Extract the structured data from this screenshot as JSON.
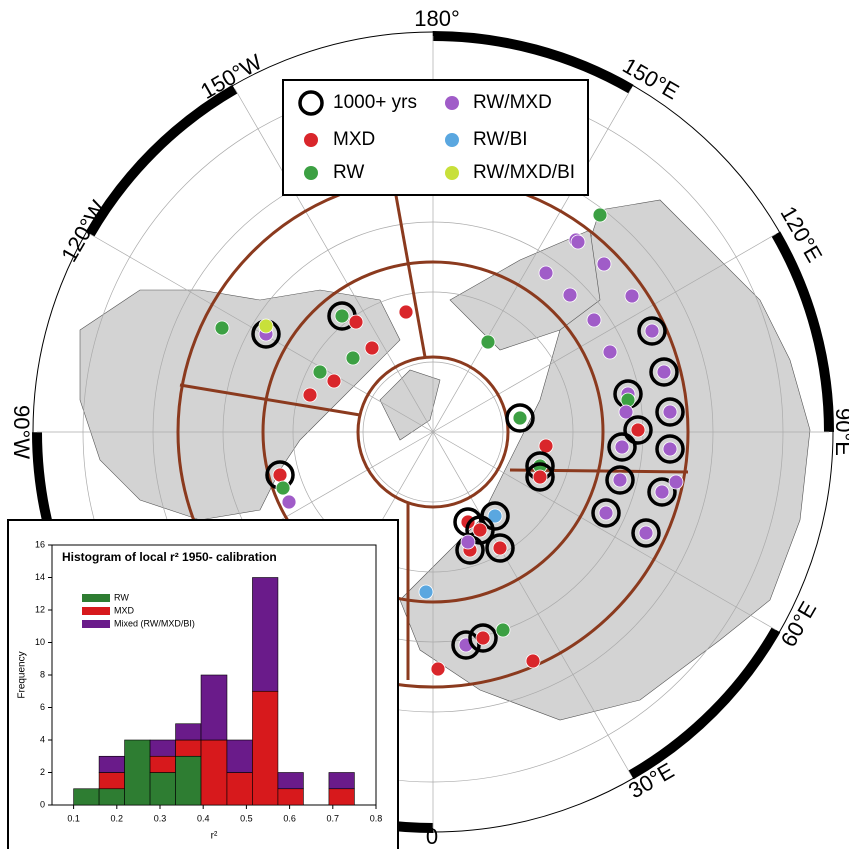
{
  "map": {
    "longitude_labels": [
      "180°",
      "150°W",
      "120°W",
      "90°W",
      "150°E",
      "120°E",
      "90°E",
      "60°E",
      "30°E",
      "0"
    ],
    "legend": [
      "1000+ yrs",
      "MXD",
      "RW",
      "RW/MXD",
      "RW/BI",
      "RW/MXD/BI"
    ]
  },
  "chart_data": {
    "type": "histogram",
    "title": "Histogram of local r² 1950- calibration",
    "x_label": "r²",
    "y_label": "Frequency",
    "bins": [
      0.1,
      0.159,
      0.218,
      0.277,
      0.336,
      0.395,
      0.455,
      0.514,
      0.573,
      0.632,
      0.691,
      0.75
    ],
    "series": [
      {
        "name": "RW",
        "color": "#2e7d32",
        "values": [
          1,
          1,
          4,
          2,
          3,
          0,
          0,
          0,
          0,
          0,
          0
        ]
      },
      {
        "name": "MXD",
        "color": "#d7191c",
        "values": [
          0,
          1,
          0,
          1,
          1,
          4,
          2,
          7,
          1,
          0,
          1
        ]
      },
      {
        "name": "Mixed (RW/MXD/BI)",
        "color": "#6a1b8a",
        "values": [
          0,
          1,
          0,
          1,
          1,
          4,
          2,
          7,
          1,
          0,
          1
        ]
      }
    ],
    "xlim": [
      0.05,
      0.8
    ],
    "xticks": [
      0.1,
      0.2,
      0.3,
      0.4,
      0.5,
      0.6,
      0.7,
      0.8
    ],
    "ylim": [
      0,
      16
    ],
    "yticks": [
      0,
      2,
      4,
      6,
      8,
      10,
      12,
      14,
      16
    ]
  }
}
